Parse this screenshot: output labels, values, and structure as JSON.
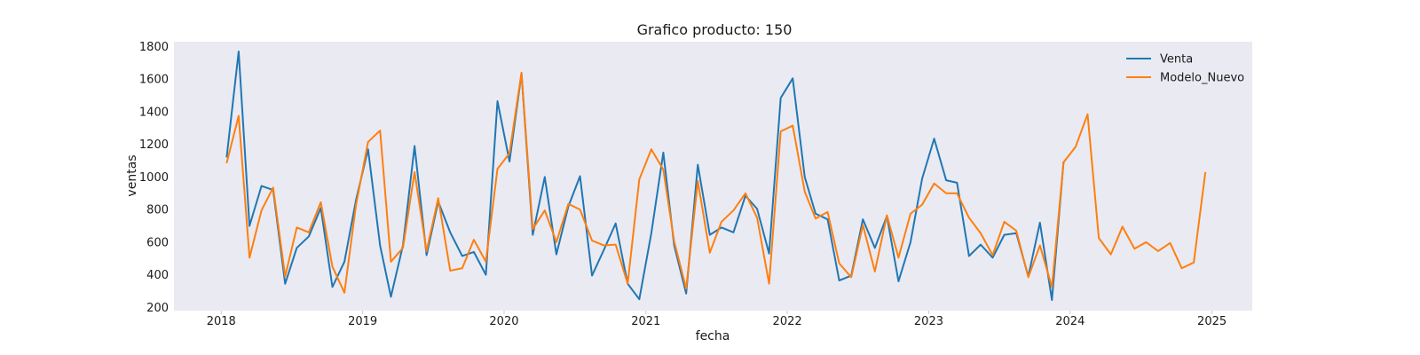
{
  "chart_data": {
    "type": "line",
    "title": "Grafico producto: 150",
    "xlabel": "fecha",
    "ylabel": "ventas",
    "xlim": [
      "2017-09-01",
      "2025-04-15"
    ],
    "ylim": [
      180,
      1830
    ],
    "x_ticks": [
      "2018",
      "2019",
      "2020",
      "2021",
      "2022",
      "2023",
      "2024",
      "2025"
    ],
    "y_ticks": [
      200,
      400,
      600,
      800,
      1000,
      1200,
      1400,
      1600,
      1800
    ],
    "grid": false,
    "background": "#eaeaf2",
    "legend_position": "top-right",
    "series": [
      {
        "name": "Venta",
        "color": "#1f77b4",
        "x": [
          "2018-01-15",
          "2018-02-15",
          "2018-03-15",
          "2018-04-15",
          "2018-05-15",
          "2018-06-15",
          "2018-07-15",
          "2018-08-15",
          "2018-09-15",
          "2018-10-15",
          "2018-11-15",
          "2018-12-15",
          "2019-01-15",
          "2019-02-15",
          "2019-03-15",
          "2019-04-15",
          "2019-05-15",
          "2019-06-15",
          "2019-07-15",
          "2019-08-15",
          "2019-09-15",
          "2019-10-15",
          "2019-11-15",
          "2019-12-15",
          "2020-01-15",
          "2020-02-15",
          "2020-03-15",
          "2020-04-15",
          "2020-05-15",
          "2020-06-15",
          "2020-07-15",
          "2020-08-15",
          "2020-09-15",
          "2020-10-15",
          "2020-11-15",
          "2020-12-15",
          "2021-01-15",
          "2021-02-15",
          "2021-03-15",
          "2021-04-15",
          "2021-05-15",
          "2021-06-15",
          "2021-07-15",
          "2021-08-15",
          "2021-09-15",
          "2021-10-15",
          "2021-11-15",
          "2021-12-15",
          "2022-01-15",
          "2022-02-15",
          "2022-03-15",
          "2022-04-15",
          "2022-05-15",
          "2022-06-15",
          "2022-07-15",
          "2022-08-15",
          "2022-09-15",
          "2022-10-15",
          "2022-11-15",
          "2022-12-15",
          "2023-01-15",
          "2023-02-15",
          "2023-03-15",
          "2023-04-15",
          "2023-05-15",
          "2023-06-15",
          "2023-07-15",
          "2023-08-15",
          "2023-09-15",
          "2023-10-15",
          "2023-11-15",
          "2023-12-15"
        ],
        "values": [
          1120,
          1770,
          700,
          945,
          920,
          345,
          565,
          635,
          810,
          325,
          480,
          860,
          1170,
          580,
          265,
          580,
          1190,
          520,
          850,
          660,
          515,
          540,
          400,
          1465,
          1095,
          1635,
          645,
          1000,
          525,
          820,
          1005,
          395,
          555,
          715,
          345,
          250,
          655,
          1150,
          580,
          285,
          1075,
          645,
          690,
          660,
          885,
          805,
          530,
          1485,
          1605,
          1000,
          775,
          740,
          365,
          395,
          740,
          565,
          760,
          360,
          600,
          990,
          1235,
          980,
          965,
          515,
          585,
          505,
          645,
          655,
          390,
          720,
          245,
          1095
        ]
      },
      {
        "name": "Modelo_Nuevo",
        "color": "#ff7f0e",
        "x": [
          "2018-01-15",
          "2018-02-15",
          "2018-03-15",
          "2018-04-15",
          "2018-05-15",
          "2018-06-15",
          "2018-07-15",
          "2018-08-15",
          "2018-09-15",
          "2018-10-15",
          "2018-11-15",
          "2018-12-15",
          "2019-01-15",
          "2019-02-15",
          "2019-03-15",
          "2019-04-15",
          "2019-05-15",
          "2019-06-15",
          "2019-07-15",
          "2019-08-15",
          "2019-09-15",
          "2019-10-15",
          "2019-11-15",
          "2019-12-15",
          "2020-01-15",
          "2020-02-15",
          "2020-03-15",
          "2020-04-15",
          "2020-05-15",
          "2020-06-15",
          "2020-07-15",
          "2020-08-15",
          "2020-09-15",
          "2020-10-15",
          "2020-11-15",
          "2020-12-15",
          "2021-01-15",
          "2021-02-15",
          "2021-03-15",
          "2021-04-15",
          "2021-05-15",
          "2021-06-15",
          "2021-07-15",
          "2021-08-15",
          "2021-09-15",
          "2021-10-15",
          "2021-11-15",
          "2021-12-15",
          "2022-01-15",
          "2022-02-15",
          "2022-03-15",
          "2022-04-15",
          "2022-05-15",
          "2022-06-15",
          "2022-07-15",
          "2022-08-15",
          "2022-09-15",
          "2022-10-15",
          "2022-11-15",
          "2022-12-15",
          "2023-01-15",
          "2023-02-15",
          "2023-03-15",
          "2023-04-15",
          "2023-05-15",
          "2023-06-15",
          "2023-07-15",
          "2023-08-15",
          "2023-09-15",
          "2023-10-15",
          "2023-11-15",
          "2023-12-15",
          "2024-01-15",
          "2024-02-15",
          "2024-03-15",
          "2024-04-15",
          "2024-05-15",
          "2024-06-15",
          "2024-07-15",
          "2024-08-15",
          "2024-09-15",
          "2024-10-15",
          "2024-11-15",
          "2024-12-15"
        ],
        "values": [
          1085,
          1375,
          505,
          795,
          935,
          390,
          690,
          660,
          845,
          450,
          290,
          830,
          1215,
          1285,
          480,
          565,
          1030,
          545,
          870,
          425,
          440,
          615,
          480,
          1050,
          1145,
          1640,
          680,
          795,
          600,
          835,
          800,
          610,
          580,
          585,
          345,
          985,
          1170,
          1045,
          605,
          315,
          975,
          535,
          725,
          795,
          900,
          750,
          345,
          1280,
          1315,
          910,
          745,
          785,
          470,
          385,
          705,
          420,
          765,
          505,
          775,
          830,
          960,
          900,
          900,
          750,
          655,
          520,
          725,
          670,
          385,
          580,
          325,
          1090,
          1185,
          1385,
          625,
          525,
          695,
          560,
          600,
          545,
          595,
          440,
          475,
          1030
        ]
      }
    ]
  }
}
